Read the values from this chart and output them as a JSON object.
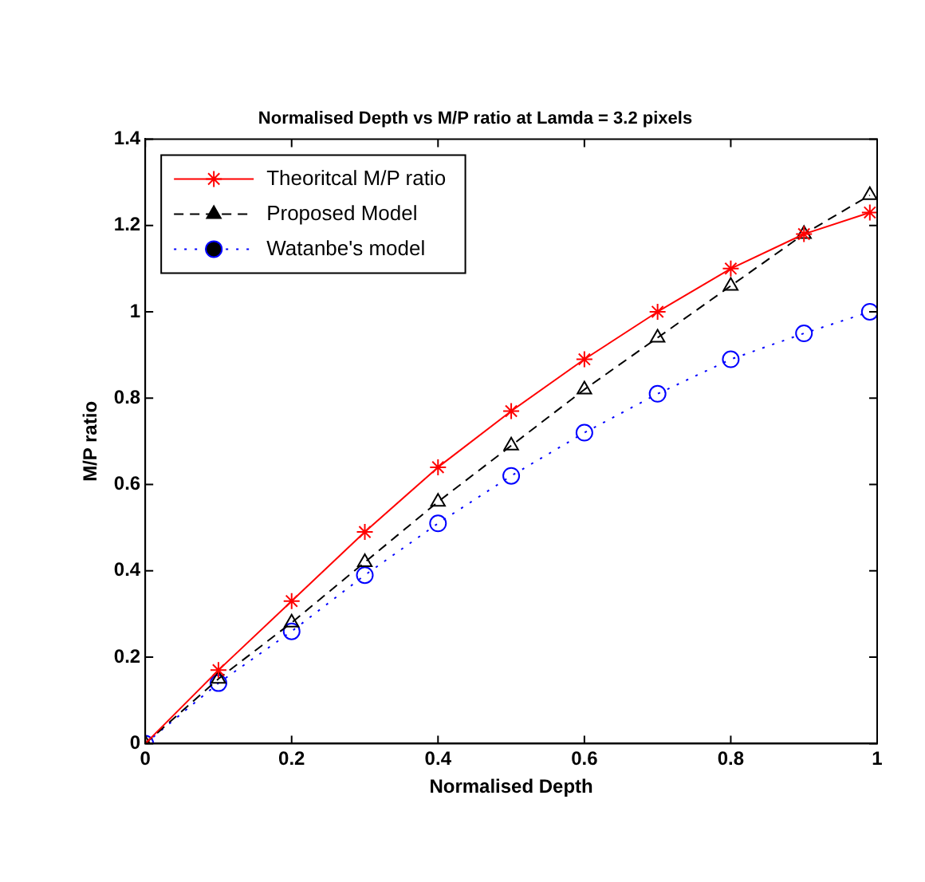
{
  "chart_data": {
    "type": "line",
    "title": "Normalised Depth vs M/P ratio at Lamda = 3.2 pixels",
    "xlabel": "Normalised Depth",
    "ylabel": "M/P ratio",
    "x": [
      0,
      0.1,
      0.2,
      0.3,
      0.4,
      0.5,
      0.6,
      0.7,
      0.8,
      0.9,
      0.99
    ],
    "series": [
      {
        "name": "Theoritcal M/P ratio",
        "color": "#ff0000",
        "marker": "cross",
        "line_style": "solid",
        "values": [
          0,
          0.17,
          0.33,
          0.49,
          0.64,
          0.77,
          0.89,
          1.0,
          1.1,
          1.18,
          1.23
        ]
      },
      {
        "name": "Proposed Model",
        "color": "#000000",
        "marker": "triangle",
        "line_style": "dashed",
        "values": [
          0,
          0.15,
          0.28,
          0.42,
          0.56,
          0.69,
          0.82,
          0.94,
          1.06,
          1.18,
          1.27
        ]
      },
      {
        "name": "Watanbe's model",
        "color": "#0000ff",
        "marker": "circle",
        "line_style": "dotted",
        "values": [
          0,
          0.14,
          0.26,
          0.39,
          0.51,
          0.62,
          0.72,
          0.81,
          0.89,
          0.95,
          1.0
        ]
      }
    ],
    "xlim": [
      0,
      1
    ],
    "xticks": [
      0,
      0.2,
      0.4,
      0.6,
      0.8,
      1
    ],
    "ylim": [
      0,
      1.4
    ],
    "yticks": [
      0,
      0.2,
      0.4,
      0.6,
      0.8,
      1,
      1.2,
      1.4
    ],
    "grid": false,
    "legend": "top left"
  }
}
